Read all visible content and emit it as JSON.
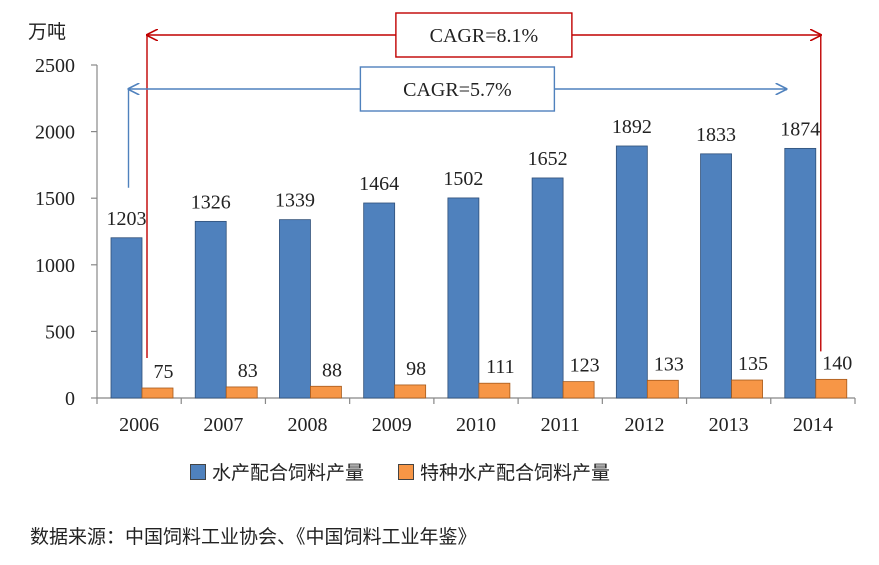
{
  "chart_data": {
    "type": "bar",
    "unit_label": "万吨",
    "categories": [
      "2006",
      "2007",
      "2008",
      "2009",
      "2010",
      "2011",
      "2012",
      "2013",
      "2014"
    ],
    "series": [
      {
        "name": "水产配合饲料产量",
        "color": "#4F81BD",
        "values": [
          1203,
          1326,
          1339,
          1464,
          1502,
          1652,
          1892,
          1833,
          1874
        ]
      },
      {
        "name": "特种水产配合饲料产量",
        "color": "#F79646",
        "values": [
          75,
          83,
          88,
          98,
          111,
          123,
          133,
          135,
          140
        ]
      }
    ],
    "ylim": [
      0,
      2500
    ],
    "yticks": [
      0,
      500,
      1000,
      1500,
      2000,
      2500
    ],
    "grid": false,
    "legend_position": "bottom",
    "annotations": [
      {
        "text": "CAGR=8.1%",
        "from": "2006",
        "to": "2014",
        "series": "特种水产配合饲料产量",
        "color": "#C00000"
      },
      {
        "text": "CAGR=5.7%",
        "from": "2006",
        "to": "2014",
        "series": "水产配合饲料产量",
        "color": "#4F81BD"
      }
    ]
  },
  "footer": {
    "source": "数据来源：中国饲料工业协会、《中国饲料工业年鉴》"
  }
}
